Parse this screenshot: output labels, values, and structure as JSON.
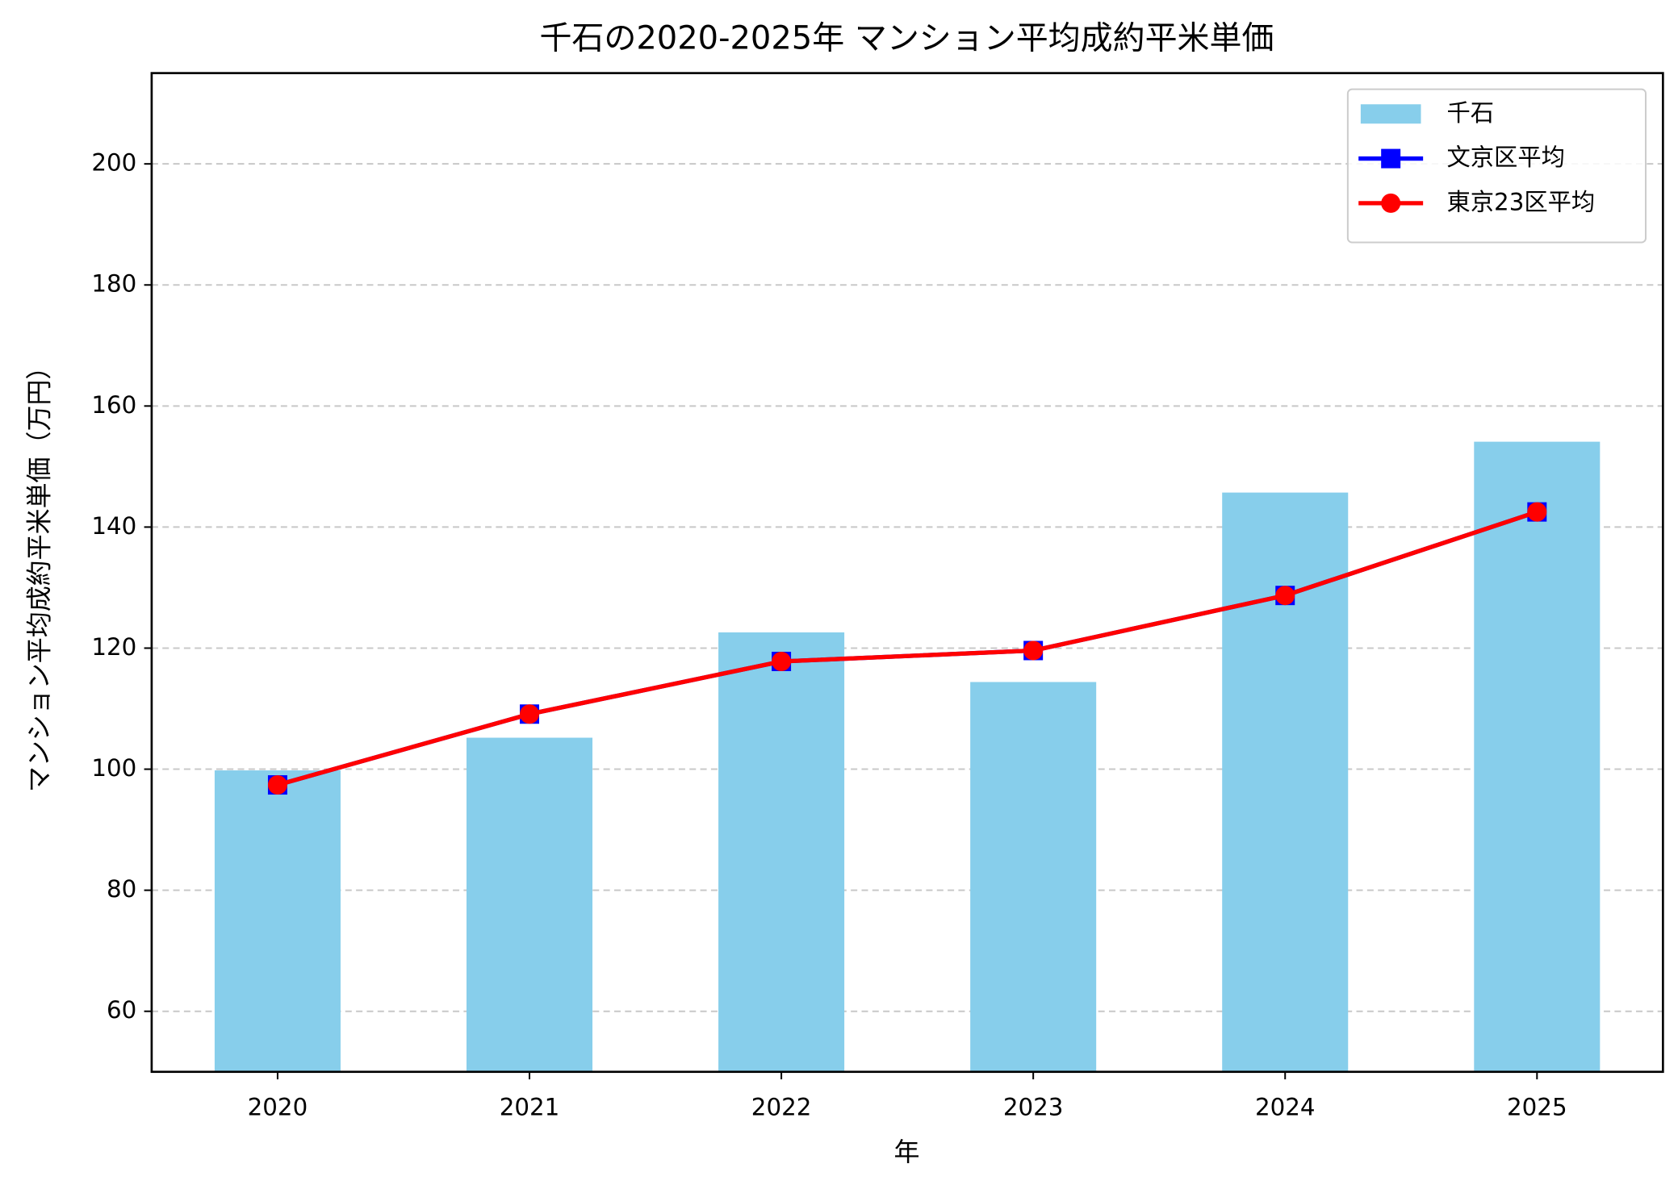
{
  "chart_data": {
    "type": "bar",
    "title": "千石の2020-2025年 マンション平均成約平米単価",
    "x_label": "年",
    "y_label": "マンション平均成約平米単価（万円）",
    "categories": [
      "2020",
      "2021",
      "2022",
      "2023",
      "2024",
      "2025"
    ],
    "series": [
      {
        "name": "千石",
        "type": "bar",
        "color": "#87ceeb",
        "values": [
          99.8,
          105.2,
          122.6,
          114.4,
          145.7,
          154.1
        ]
      },
      {
        "name": "文京区平均",
        "type": "line",
        "marker": "square",
        "color": "#0000ff",
        "values": [
          97.4,
          109.1,
          117.8,
          119.6,
          128.7,
          142.5
        ]
      },
      {
        "name": "東京23区平均",
        "type": "line",
        "marker": "circle",
        "color": "#ff0000",
        "values": [
          97.4,
          109.1,
          117.8,
          119.6,
          128.7,
          142.5
        ]
      }
    ],
    "ylim": [
      50,
      215
    ],
    "yticks": [
      60,
      80,
      100,
      120,
      140,
      160,
      180,
      200
    ],
    "grid": true,
    "legend": "upper right"
  }
}
